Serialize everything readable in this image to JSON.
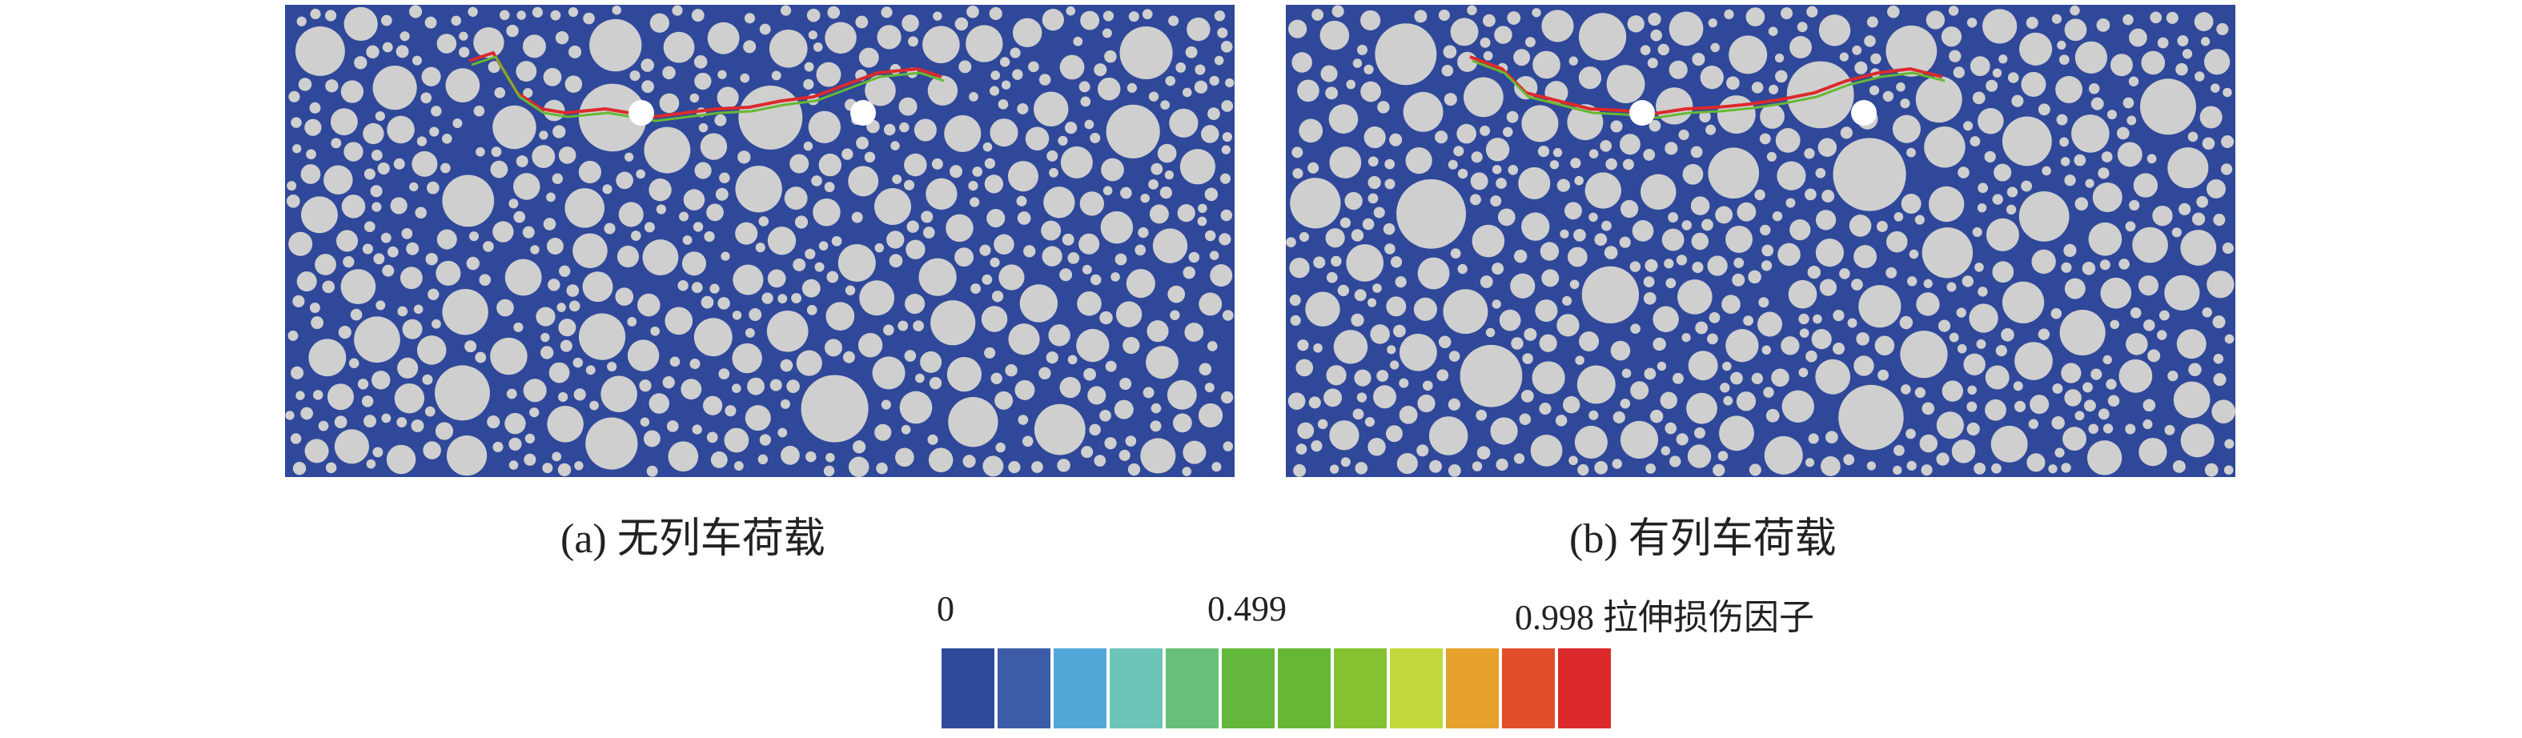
{
  "panels": [
    {
      "id": "a",
      "caption": "(a) 无列车荷载"
    },
    {
      "id": "b",
      "caption": "(b) 有列车荷载"
    }
  ],
  "legend": {
    "min_label": "0",
    "mid_label": "0.499",
    "max_label": "0.998",
    "title": "拉伸损伤因子",
    "colors": [
      "#304a9a",
      "#3d5ca8",
      "#52a8d8",
      "#6cc4b8",
      "#68bf78",
      "#63b73a",
      "#66b834",
      "#84c232",
      "#c2d83a",
      "#e6a02c",
      "#e04f2a",
      "#dc2a2c"
    ]
  },
  "colors": {
    "matrix": "#2f4899",
    "aggregate": "#cfcfcf",
    "hole": "#ffffff"
  }
}
